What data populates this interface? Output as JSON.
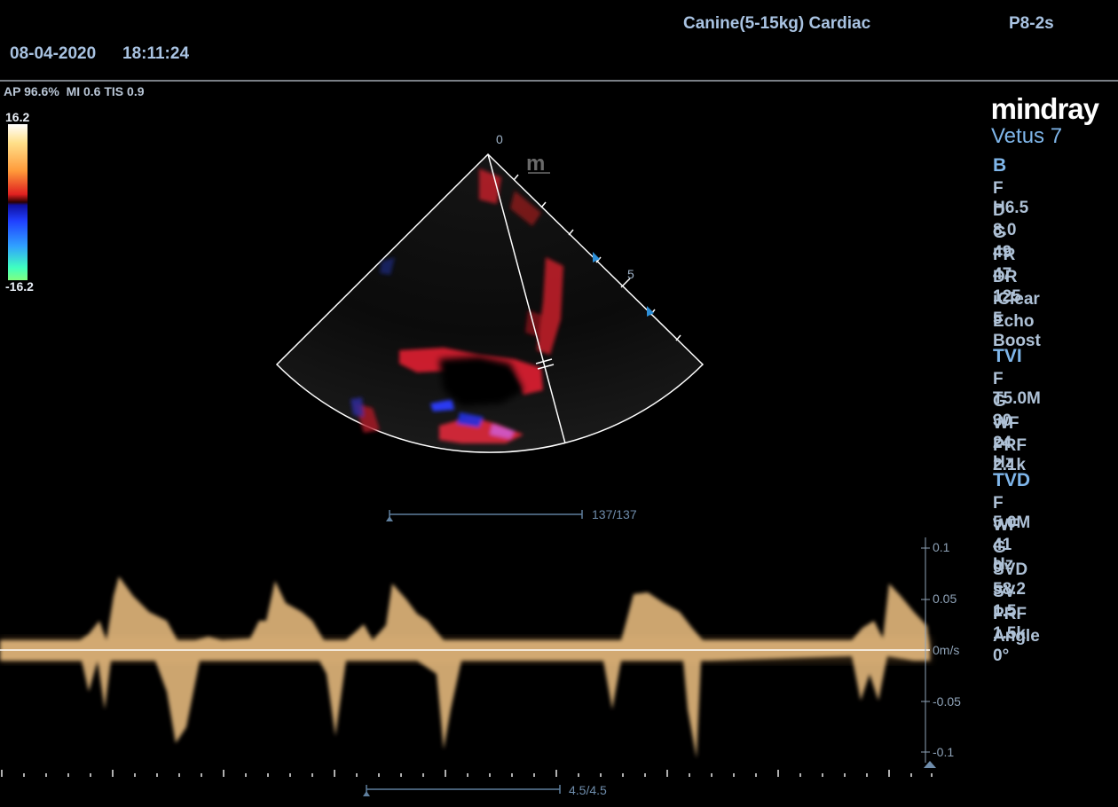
{
  "header": {
    "preset": "Canine(5-15kg) Cardiac",
    "probe": "P8-2s",
    "date": "08-04-2020",
    "time": "18:11:24"
  },
  "safety": {
    "ap": "AP 96.6%",
    "mi": "MI 0.6",
    "tis": "TIS 0.9"
  },
  "color_bar": {
    "max": "16.2",
    "min": "-16.2"
  },
  "brand": {
    "logo": "mindray",
    "model": "Vetus 7"
  },
  "sector": {
    "depth_top": "0",
    "depth_mark": "5",
    "mode_marker": "m"
  },
  "b_mode": {
    "title": "B",
    "params": [
      "F H6.5",
      "D 8.0",
      "G 49",
      "FR 47",
      "DR 125",
      "iClear 5",
      "Echo Boost"
    ]
  },
  "tvi": {
    "title": "TVI",
    "params": [
      "F T5.0M",
      "G 30",
      "WF 24 Hz",
      "PRF 2.1k"
    ]
  },
  "tvd": {
    "title": "TVD",
    "params": [
      "F 5.0M",
      "WF 41 Hz",
      "G 0",
      "SVD 58.2",
      "SV 1.5",
      "PRF 1.5k",
      "Angle  0°"
    ]
  },
  "cine": {
    "frame_counter": "137/137",
    "time_counter": "4.5/4.5"
  },
  "doppler_scale": {
    "labels": [
      "0.1",
      "0.05",
      "0m/s",
      "-0.05",
      "-0.1"
    ]
  },
  "colors": {
    "accent_blue": "#7fb6ea",
    "spectral": "#f0c283",
    "baseline": "#ffffff"
  }
}
